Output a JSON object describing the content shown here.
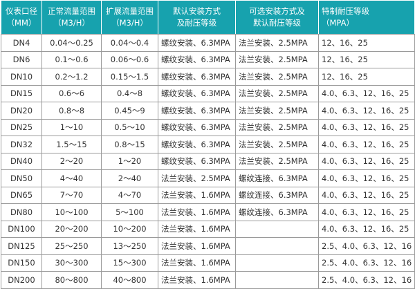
{
  "accent": "#17a2ae",
  "headers": [
    {
      "line1": "仪表口径",
      "line2": "（MM）"
    },
    {
      "line1": "正常流量范围",
      "line2": "（M3/H）"
    },
    {
      "line1": "扩展流量范围",
      "line2": "（M3/H）"
    },
    {
      "line1": "默认安装方式",
      "line2": "及耐压等级"
    },
    {
      "line1": "可选安装方式及",
      "line2": "默认耐压等级"
    },
    {
      "line1": "特制耐压等级",
      "line2": "（MPA）"
    }
  ],
  "rows": [
    [
      "DN4",
      "0.04～0.25",
      "0.04～0.4",
      "螺纹安装、6.3MPA",
      "法兰安装、2.5MPA",
      "12、16、25"
    ],
    [
      "DN6",
      "0.1～0.6",
      "0.06～0.6",
      "螺纹安装、6.3MPA",
      "法兰安装、2.5MPA",
      "12、16、25"
    ],
    [
      "DN10",
      "0.2～1.2",
      "0.15～1.5",
      "螺纹安装、6.3MPA",
      "法兰安装、2.5MPA",
      "12、16、25"
    ],
    [
      "DN15",
      "0.6～6",
      "0.4～8",
      "螺纹安装、6.3MPA",
      "法兰安装、2.5MPA",
      "4.0、6.3、12、16、25"
    ],
    [
      "DN20",
      "0.8～8",
      "0.45～9",
      "螺纹安装、6.3MPA",
      "法兰安装、2.5MPA",
      "4.0、6.3、12、16、25"
    ],
    [
      "DN25",
      "1～10",
      "0.5～10",
      "螺纹安装、6.3MPA",
      "法兰安装、2.5MPA",
      "4.0、6.3、12、16、25"
    ],
    [
      "DN32",
      "1.5～15",
      "0.8～15",
      "螺纹安装、6.3MPA",
      "法兰安装、2.5MPA",
      "4.0、6.3、12、16、25"
    ],
    [
      "DN40",
      "2～20",
      "1～20",
      "螺纹安装、6.3MPA",
      "法兰安装、2.5MPA",
      "4.0、6.3、12、16、25"
    ],
    [
      "DN50",
      "4～40",
      "2～40",
      "法兰安装、2.5MPA",
      "螺纹连接、6.3MPA",
      "4.0、6.3、12、16、25"
    ],
    [
      "DN65",
      "7～70",
      "4～70",
      "法兰安装、1.6MPA",
      "螺纹连接、6.3MPA",
      "4.0、6.3、12、16、25"
    ],
    [
      "DN80",
      "10～100",
      "5～100",
      "法兰安装、1.6MPA",
      "螺纹连接、6.3MPA",
      "4.0、6.3、12、16、25"
    ],
    [
      "DN100",
      "20～200",
      "10～200",
      "法兰安装、1.6MPA",
      "",
      "4.0、6.3、12、16、25"
    ],
    [
      "DN125",
      "25～250",
      "13～250",
      "法兰安装、1.6MPA",
      "",
      "2.5、4.0、6.3、12、16"
    ],
    [
      "DN150",
      "30～300",
      "15～300",
      "法兰安装、1.6MPA",
      "",
      "2.5、4.0、6.3、12、16"
    ],
    [
      "DN200",
      "80～800",
      "40～800",
      "法兰安装、1.6MPA",
      "",
      "2.5、4.0、6.3、12、16"
    ]
  ]
}
